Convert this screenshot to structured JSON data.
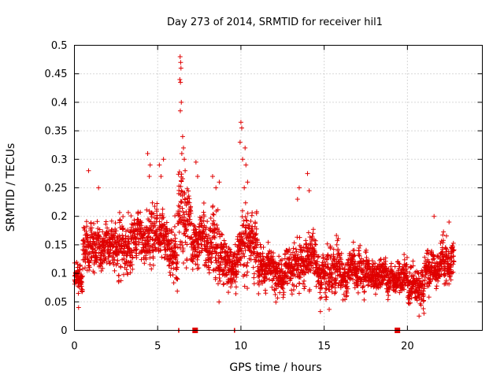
{
  "chart_data": {
    "type": "scatter",
    "title": "Day 273 of 2014, SRMTID for receiver hil1",
    "xlabel": "GPS time / hours",
    "ylabel": "SRMTID / TECUs",
    "xlim": [
      0,
      24.5
    ],
    "ylim": [
      0,
      0.5
    ],
    "x_ticks": [
      0,
      5,
      10,
      15,
      20
    ],
    "x_tick_labels": [
      "0",
      "5",
      "10",
      "15",
      "20"
    ],
    "y_ticks": [
      0,
      0.05,
      0.1,
      0.15,
      0.2,
      0.25,
      0.3,
      0.35,
      0.4,
      0.45,
      0.5
    ],
    "y_tick_labels": [
      "0",
      "0.05",
      "0.1",
      "0.15",
      "0.2",
      "0.25",
      "0.3",
      "0.35",
      "0.4",
      "0.45",
      "0.5"
    ],
    "grid": true,
    "marker": "+",
    "color": "#e00000",
    "series": [
      {
        "name": "SRMTID",
        "segments": [
          {
            "x_start": 0.0,
            "x_end": 0.5,
            "mean": 0.095,
            "spread": 0.025
          },
          {
            "x_start": 0.5,
            "x_end": 1.5,
            "mean": 0.15,
            "spread": 0.045
          },
          {
            "x_start": 1.5,
            "x_end": 2.5,
            "mean": 0.15,
            "spread": 0.04
          },
          {
            "x_start": 2.5,
            "x_end": 3.5,
            "mean": 0.145,
            "spread": 0.045
          },
          {
            "x_start": 3.5,
            "x_end": 4.5,
            "mean": 0.16,
            "spread": 0.045
          },
          {
            "x_start": 4.5,
            "x_end": 5.5,
            "mean": 0.17,
            "spread": 0.05
          },
          {
            "x_start": 5.5,
            "x_end": 6.2,
            "mean": 0.14,
            "spread": 0.05
          },
          {
            "x_start": 6.2,
            "x_end": 7.0,
            "mean": 0.2,
            "spread": 0.07
          },
          {
            "x_start": 7.0,
            "x_end": 8.0,
            "mean": 0.15,
            "spread": 0.045
          },
          {
            "x_start": 8.0,
            "x_end": 9.0,
            "mean": 0.14,
            "spread": 0.06
          },
          {
            "x_start": 9.0,
            "x_end": 10.0,
            "mean": 0.12,
            "spread": 0.04
          },
          {
            "x_start": 10.0,
            "x_end": 11.0,
            "mean": 0.15,
            "spread": 0.06
          },
          {
            "x_start": 11.0,
            "x_end": 12.0,
            "mean": 0.11,
            "spread": 0.035
          },
          {
            "x_start": 12.0,
            "x_end": 13.0,
            "mean": 0.1,
            "spread": 0.035
          },
          {
            "x_start": 13.0,
            "x_end": 14.5,
            "mean": 0.12,
            "spread": 0.045
          },
          {
            "x_start": 14.5,
            "x_end": 16.0,
            "mean": 0.1,
            "spread": 0.04
          },
          {
            "x_start": 16.0,
            "x_end": 18.0,
            "mean": 0.1,
            "spread": 0.035
          },
          {
            "x_start": 18.0,
            "x_end": 20.0,
            "mean": 0.095,
            "spread": 0.03
          },
          {
            "x_start": 20.0,
            "x_end": 21.0,
            "mean": 0.08,
            "spread": 0.035
          },
          {
            "x_start": 21.0,
            "x_end": 22.0,
            "mean": 0.11,
            "spread": 0.035
          },
          {
            "x_start": 22.0,
            "x_end": 22.8,
            "mean": 0.12,
            "spread": 0.04
          }
        ],
        "peaks": [
          {
            "x": 6.35,
            "y": 0.48
          },
          {
            "x": 6.38,
            "y": 0.47
          },
          {
            "x": 6.4,
            "y": 0.46
          },
          {
            "x": 6.33,
            "y": 0.44
          },
          {
            "x": 6.37,
            "y": 0.435
          },
          {
            "x": 6.42,
            "y": 0.4
          },
          {
            "x": 6.36,
            "y": 0.385
          },
          {
            "x": 6.5,
            "y": 0.34
          },
          {
            "x": 6.55,
            "y": 0.32
          },
          {
            "x": 6.45,
            "y": 0.31
          },
          {
            "x": 6.6,
            "y": 0.3
          },
          {
            "x": 6.65,
            "y": 0.28
          },
          {
            "x": 4.4,
            "y": 0.31
          },
          {
            "x": 4.55,
            "y": 0.29
          },
          {
            "x": 4.5,
            "y": 0.27
          },
          {
            "x": 5.1,
            "y": 0.29
          },
          {
            "x": 5.35,
            "y": 0.3
          },
          {
            "x": 5.2,
            "y": 0.27
          },
          {
            "x": 7.3,
            "y": 0.295
          },
          {
            "x": 7.4,
            "y": 0.27
          },
          {
            "x": 8.3,
            "y": 0.27
          },
          {
            "x": 8.5,
            "y": 0.25
          },
          {
            "x": 8.7,
            "y": 0.26
          },
          {
            "x": 10.0,
            "y": 0.365
          },
          {
            "x": 10.05,
            "y": 0.355
          },
          {
            "x": 9.95,
            "y": 0.33
          },
          {
            "x": 10.1,
            "y": 0.3
          },
          {
            "x": 10.25,
            "y": 0.32
          },
          {
            "x": 10.3,
            "y": 0.29
          },
          {
            "x": 10.4,
            "y": 0.26
          },
          {
            "x": 10.2,
            "y": 0.25
          },
          {
            "x": 0.85,
            "y": 0.28
          },
          {
            "x": 1.45,
            "y": 0.25
          },
          {
            "x": 14.0,
            "y": 0.275
          },
          {
            "x": 13.5,
            "y": 0.25
          },
          {
            "x": 14.1,
            "y": 0.245
          },
          {
            "x": 13.4,
            "y": 0.23
          },
          {
            "x": 21.6,
            "y": 0.2
          },
          {
            "x": 22.5,
            "y": 0.19
          },
          {
            "x": 0.25,
            "y": 0.04
          },
          {
            "x": 20.7,
            "y": 0.025
          }
        ],
        "zero_points": [
          6.25,
          6.28,
          9.6,
          9.63
        ],
        "bottom_squares": [
          7.25,
          19.4
        ]
      }
    ]
  }
}
